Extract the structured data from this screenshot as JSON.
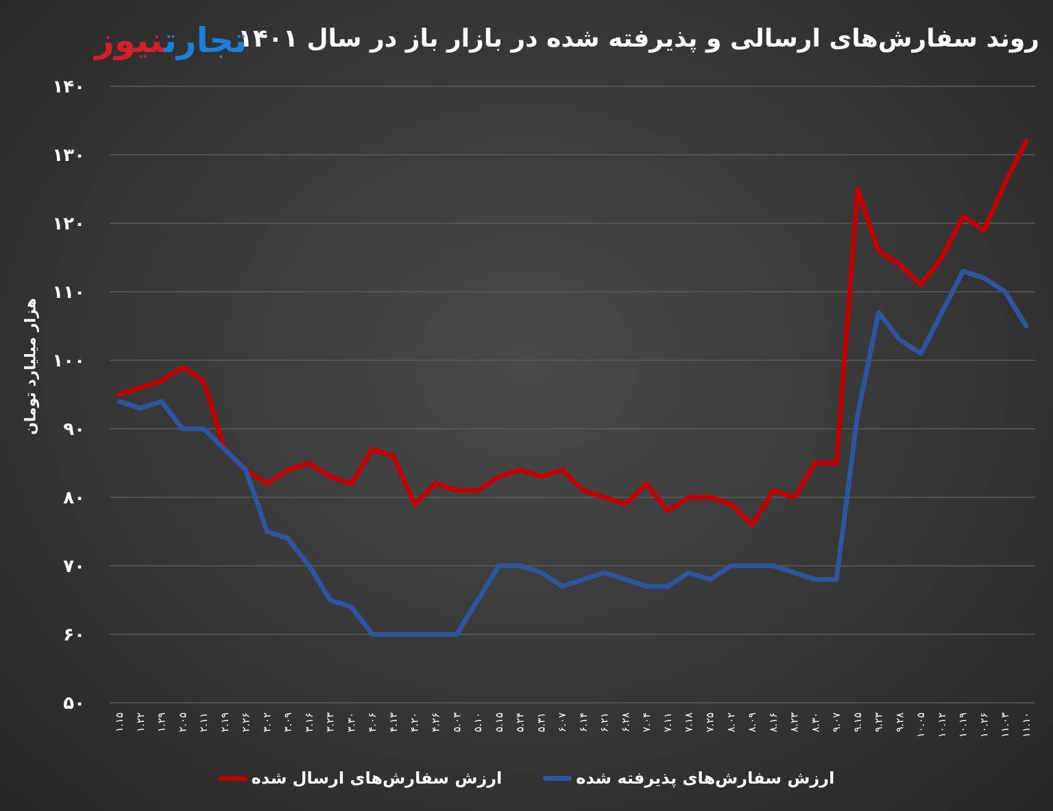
{
  "title": "روند سفارش‌های ارسالی و پذیرفته شده در بازار باز در سال ۱۴۰۱",
  "logo": {
    "part_a": "تجارت",
    "part_b": "نیوز"
  },
  "chart_data": {
    "type": "line",
    "ylabel": "هزار میلیارد تومان",
    "ylim": [
      50,
      140
    ],
    "yticks": [
      50,
      60,
      70,
      80,
      90,
      100,
      110,
      120,
      130,
      140
    ],
    "ytick_labels": [
      "۵۰",
      "۶۰",
      "۷۰",
      "۸۰",
      "۹۰",
      "۱۰۰",
      "۱۱۰",
      "۱۲۰",
      "۱۳۰",
      "۱۴۰"
    ],
    "grid": true,
    "legend_position": "bottom",
    "categories": [
      "۱.۱۵",
      "۱.۲۲",
      "۱.۲۹",
      "۲.۰۵",
      "۲.۱۱",
      "۲.۱۹",
      "۲.۲۶",
      "۳.۰۲",
      "۳.۰۹",
      "۳.۱۶",
      "۳.۲۳",
      "۳.۳۰",
      "۴.۰۶",
      "۴.۱۳",
      "۴.۲۰",
      "۴.۲۶",
      "۵.۰۳",
      "۵.۱۰",
      "۵.۱۵",
      "۵.۲۴",
      "۵.۳۱",
      "۶.۰۷",
      "۶.۱۴",
      "۶.۲۱",
      "۶.۲۸",
      "۷.۰۴",
      "۷.۱۱",
      "۷.۱۸",
      "۷.۲۵",
      "۸.۰۲",
      "۸.۰۹",
      "۸.۱۶",
      "۸.۲۳",
      "۸.۳۰",
      "۹.۰۷",
      "۹.۱۵",
      "۹.۲۳",
      "۹.۲۸",
      "۱۰.۰۵",
      "۱۰.۱۲",
      "۱۰.۱۹",
      "۱۰.۲۶",
      "۱۱.۰۳",
      "۱۱.۱۰"
    ],
    "series": [
      {
        "name": "ارزش سفارش‌های ارسال شده",
        "color": "#c00000",
        "values": [
          95,
          96,
          97,
          99,
          97,
          87,
          84,
          82,
          84,
          85,
          83,
          82,
          87,
          86,
          79,
          82,
          81,
          81,
          83,
          84,
          83,
          84,
          81,
          80,
          79,
          82,
          78,
          80,
          80,
          79,
          76,
          81,
          80,
          85,
          85,
          125,
          116,
          114,
          111,
          115,
          121,
          119,
          126,
          132
        ]
      },
      {
        "name": "ارزش سفارش‌های پذیرفته شده",
        "color": "#2e56a0",
        "values": [
          94,
          93,
          94,
          90,
          90,
          87,
          84,
          75,
          74,
          70,
          65,
          64,
          60,
          60,
          60,
          60,
          60,
          65,
          70,
          70,
          69,
          67,
          68,
          69,
          68,
          67,
          67,
          69,
          68,
          70,
          70,
          70,
          69,
          68,
          68,
          92,
          107,
          103,
          101,
          107,
          113,
          112,
          110,
          105
        ]
      }
    ]
  }
}
